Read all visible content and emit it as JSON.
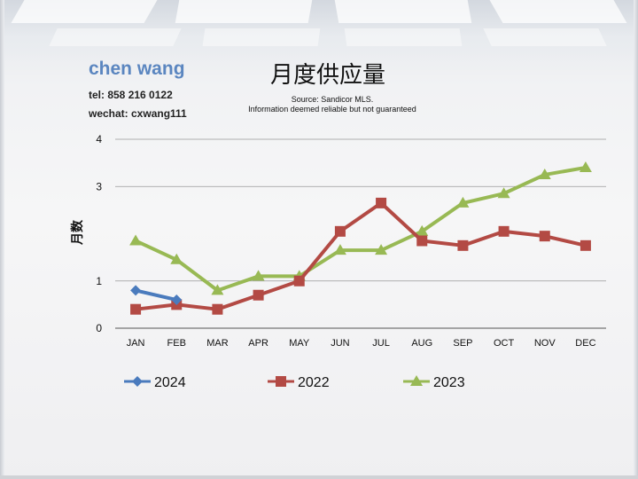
{
  "contact": {
    "name": "chen wang",
    "tel": "tel: 858 216 0122",
    "wechat": "wechat: cxwang111"
  },
  "source": {
    "line1": "Source: Sandicor MLS.",
    "line2": "Information deemed reliable but not guaranteed"
  },
  "chart_data": {
    "type": "line",
    "title": "月度供应量",
    "xlabel": "",
    "ylabel": "月数",
    "categories": [
      "JAN",
      "FEB",
      "MAR",
      "APR",
      "MAY",
      "JUN",
      "JUL",
      "AUG",
      "SEP",
      "OCT",
      "NOV",
      "DEC"
    ],
    "yticks": [
      0,
      1,
      3,
      4
    ],
    "ylim": [
      0,
      4
    ],
    "grid": true,
    "legend_position": "bottom",
    "series": [
      {
        "name": "2024",
        "color": "#4a7bbd",
        "marker": "diamond",
        "values": [
          0.8,
          0.6,
          null,
          null,
          null,
          null,
          null,
          null,
          null,
          null,
          null,
          null
        ]
      },
      {
        "name": "2022",
        "color": "#b34a44",
        "marker": "square",
        "values": [
          0.4,
          0.5,
          0.4,
          0.7,
          1.0,
          2.05,
          2.65,
          1.85,
          1.75,
          2.05,
          1.95,
          1.75
        ]
      },
      {
        "name": "2023",
        "color": "#98b954",
        "marker": "triangle",
        "values": [
          1.85,
          1.45,
          0.8,
          1.1,
          1.1,
          1.65,
          1.65,
          2.05,
          2.65,
          2.85,
          3.25,
          3.4
        ]
      }
    ]
  }
}
